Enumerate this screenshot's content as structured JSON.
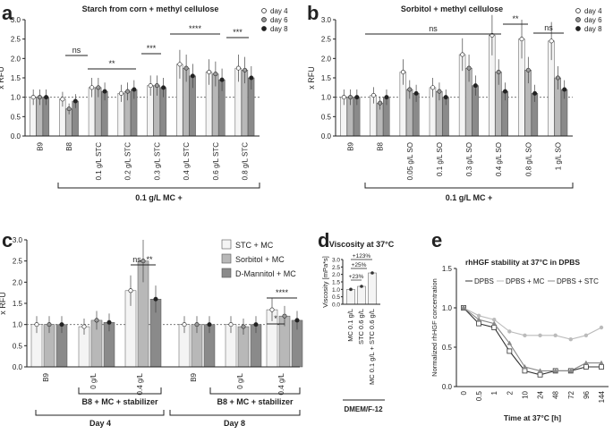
{
  "panels": {
    "a": "a",
    "b": "b",
    "c": "c",
    "d": "d",
    "e": "e"
  },
  "chart_data": [
    {
      "id": "a",
      "type": "bar",
      "title": "Starch from corn + methyl cellulose",
      "ylabel": "x RFU",
      "ylim": [
        0,
        3.0
      ],
      "yticks": [
        "0.0",
        "0.5",
        "1.0",
        "1.5",
        "2.0",
        "2.5",
        "3.0"
      ],
      "categories": [
        "B9",
        "B8",
        "0.1 g/L STC",
        "0.2 g/L STC",
        "0.3 g/L STC",
        "0.4 g/L STC",
        "0.6 g/L STC",
        "0.8 g/L STC"
      ],
      "series": [
        {
          "name": "day 4",
          "values": [
            1.0,
            0.95,
            1.25,
            1.1,
            1.3,
            1.85,
            1.65,
            1.75
          ]
        },
        {
          "name": "day 6",
          "values": [
            1.0,
            0.7,
            1.25,
            1.15,
            1.3,
            1.75,
            1.6,
            1.7
          ]
        },
        {
          "name": "day 8",
          "values": [
            1.0,
            0.9,
            1.15,
            1.2,
            1.25,
            1.55,
            1.45,
            1.5
          ]
        }
      ],
      "legend": [
        "day 4",
        "day 6",
        "day 8"
      ],
      "bracket_label": "0.1 g/L MC +",
      "annotations": [
        "ns",
        "**",
        "***",
        "****",
        "***"
      ]
    },
    {
      "id": "b",
      "type": "bar",
      "title": "Sorbitol + methyl cellulose",
      "ylabel": "x RFU",
      "ylim": [
        0,
        3.0
      ],
      "yticks": [
        "0.0",
        "0.5",
        "1.0",
        "1.5",
        "2.0",
        "2.5",
        "3.0"
      ],
      "categories": [
        "B9",
        "B8",
        "0.05 g/L SO",
        "0.1 g/L SO",
        "0.3 g/L SO",
        "0.4 g/L SO",
        "0.8 g/L SO",
        "1 g/L SO"
      ],
      "series": [
        {
          "name": "day 4",
          "values": [
            1.0,
            1.05,
            1.65,
            1.25,
            2.1,
            2.6,
            2.5,
            2.45
          ]
        },
        {
          "name": "day 6",
          "values": [
            1.0,
            0.85,
            1.2,
            1.15,
            1.75,
            1.65,
            1.7,
            1.5
          ]
        },
        {
          "name": "day 8",
          "values": [
            1.0,
            1.0,
            1.1,
            1.0,
            1.3,
            1.15,
            1.1,
            1.2
          ]
        }
      ],
      "legend": [
        "day 4",
        "day 6",
        "day 8"
      ],
      "bracket_label": "0.1 g/L MC +",
      "annotations": [
        "ns",
        "**",
        "ns"
      ]
    },
    {
      "id": "c",
      "type": "bar",
      "ylabel": "x RFU",
      "ylim": [
        0,
        3.0
      ],
      "yticks": [
        "0.0",
        "0.5",
        "1.0",
        "1.5",
        "2.0",
        "2.5",
        "3.0"
      ],
      "categories": [
        "B9",
        "0 g/L",
        "0.4 g/L",
        "B9",
        "0 g/L",
        "0.4 g/L"
      ],
      "series": [
        {
          "name": "STC + MC",
          "values": [
            1.0,
            0.95,
            1.8,
            1.0,
            1.0,
            1.35
          ]
        },
        {
          "name": "Sorbitol + MC",
          "values": [
            1.0,
            1.1,
            2.5,
            1.0,
            0.95,
            1.2
          ]
        },
        {
          "name": "D-Mannitol + MC",
          "values": [
            1.0,
            1.05,
            1.6,
            1.0,
            1.0,
            1.1
          ]
        }
      ],
      "legend": [
        "STC + MC",
        "Sorbitol + MC",
        "D-Mannitol + MC"
      ],
      "group_labels": [
        "B8 + MC + stabilizer",
        "Day 4",
        "B8 + MC + stabilizer",
        "Day 8"
      ],
      "annotations": [
        "ns",
        "**",
        "*",
        "****"
      ]
    },
    {
      "id": "d",
      "type": "bar",
      "title": "Viscosity at 37°C",
      "ylabel": "Viscosity [mPa*s]",
      "ylim": [
        0,
        3.0
      ],
      "yticks": [
        "0.0",
        "0.5",
        "1.0",
        "1.5",
        "2.0",
        "2.5",
        "3.0"
      ],
      "categories": [
        "MC 0.1 g/L",
        "STC 0.6 g/L",
        "MC 0.1 g/L + STC 0.6 g/L"
      ],
      "values": [
        1.0,
        1.2,
        2.1
      ],
      "media_label": "DMEM/F-12",
      "annotations": [
        "+123%",
        "+25%",
        "+23%"
      ]
    },
    {
      "id": "e",
      "type": "line",
      "title": "rhHGF stability at 37°C in DPBS",
      "ylabel": "Normalized rhHGF concentration",
      "xlabel": "Time at 37°C [h]",
      "ylim": [
        0,
        1.5
      ],
      "yticks": [
        "0.0",
        "0.5",
        "1.0",
        "1.5"
      ],
      "x": [
        "0",
        "0.5",
        "1",
        "2",
        "10",
        "24",
        "48",
        "72",
        "96",
        "144"
      ],
      "series": [
        {
          "name": "DPBS",
          "values": [
            1.0,
            0.8,
            0.75,
            0.45,
            0.2,
            0.15,
            0.2,
            0.2,
            0.25,
            0.25
          ]
        },
        {
          "name": "DPBS + MC",
          "values": [
            1.0,
            0.9,
            0.85,
            0.7,
            0.65,
            0.65,
            0.65,
            0.6,
            0.65,
            0.75
          ]
        },
        {
          "name": "DPBS + STC",
          "values": [
            1.0,
            0.85,
            0.8,
            0.55,
            0.25,
            0.2,
            0.2,
            0.2,
            0.3,
            0.3
          ]
        }
      ],
      "legend": [
        "DPBS",
        "DPBS + MC",
        "DPBS + STC"
      ]
    }
  ]
}
